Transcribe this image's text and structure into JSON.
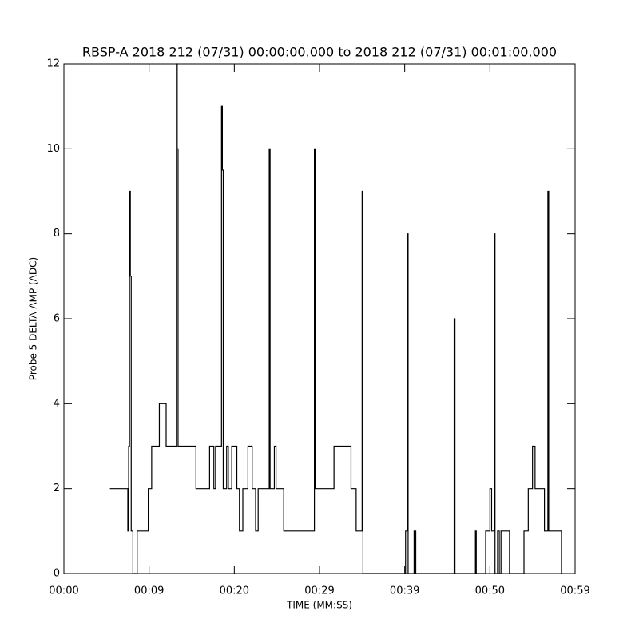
{
  "chart_data": {
    "type": "line",
    "title": "RBSP-A 2018 212 (07/31) 00:00:00.000 to 2018 212 (07/31) 00:01:00.000",
    "x_label": "TIME (MM:SS)",
    "y_label": "Probe 5 DELTA AMP (ADC)",
    "xlim": [
      0,
      60
    ],
    "xticks": [
      {
        "value": 0,
        "label": "00:00"
      },
      {
        "value": 10,
        "label": "00:09"
      },
      {
        "value": 20,
        "label": "00:20"
      },
      {
        "value": 30,
        "label": "00:29"
      },
      {
        "value": 40,
        "label": "00:39"
      },
      {
        "value": 50,
        "label": "00:50"
      },
      {
        "value": 60,
        "label": "00:59"
      }
    ],
    "ylim": [
      0,
      12
    ],
    "yticks": [
      0,
      2,
      4,
      6,
      8,
      10,
      12
    ],
    "step": true,
    "series": [
      {
        "color": "#000000",
        "x": [
          5.4,
          7.5,
          7.6,
          7.7,
          7.8,
          7.9,
          8.1,
          8.6,
          9.9,
          10.3,
          11.2,
          12.0,
          13.2,
          13.3,
          13.4,
          15.5,
          17.1,
          17.6,
          17.8,
          18.5,
          18.6,
          18.7,
          19.1,
          19.3,
          19.7,
          20.3,
          20.6,
          21.0,
          21.6,
          22.1,
          22.5,
          22.8,
          24.1,
          24.2,
          24.7,
          24.9,
          25.8,
          29.4,
          29.5,
          31.7,
          33.7,
          34.3,
          35.0,
          35.1,
          40.1,
          40.3,
          40.4,
          41.1,
          41.3,
          45.8,
          45.9,
          48.3,
          48.4,
          49.5,
          50.0,
          50.2,
          50.5,
          50.6,
          50.9,
          51.1,
          51.3,
          51.6,
          52.3,
          54.0,
          54.5,
          55.0,
          55.3,
          56.4,
          56.8,
          56.9,
          58.4
        ],
        "values": [
          2,
          1,
          3,
          9,
          7,
          1,
          0,
          1,
          2,
          3,
          4,
          3,
          12,
          10,
          3,
          2,
          3,
          2,
          3,
          11,
          9.5,
          2,
          3,
          2,
          3,
          2,
          1,
          2,
          3,
          2,
          1,
          2,
          10,
          2,
          3,
          2,
          1,
          10,
          2,
          3,
          2,
          1,
          9,
          0,
          1,
          8,
          0,
          1,
          0,
          6,
          0,
          1,
          0,
          1,
          2,
          1,
          8,
          0,
          1,
          0,
          1,
          1,
          0,
          1,
          2,
          3,
          2,
          1,
          9,
          1,
          0
        ]
      }
    ]
  }
}
